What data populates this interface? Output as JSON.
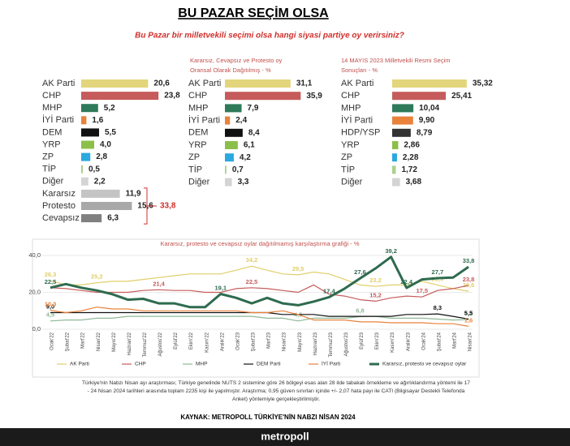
{
  "header": {
    "title": "BU PAZAR SEÇİM OLSA",
    "subtitle": "Bu Pazar bir milletvekili seçimi olsa hangi siyasi partiye oy verirsiniz?"
  },
  "chart_data": [
    {
      "type": "hbar",
      "categories": [
        "AK Parti",
        "CHP",
        "MHP",
        "İYİ Parti",
        "DEM",
        "YRP",
        "ZP",
        "TİP",
        "Diğer",
        "Kararsız",
        "Protesto",
        "Cevapsız"
      ],
      "values": [
        20.6,
        23.8,
        5.2,
        1.6,
        5.5,
        4.0,
        2.8,
        0.5,
        2.2,
        11.9,
        15.6,
        6.3
      ],
      "value_labels": [
        "20,6",
        "23,8",
        "5,2",
        "1,6",
        "5,5",
        "4,0",
        "2,8",
        "0,5",
        "2,2",
        "11,9",
        "15,6",
        "6,3"
      ],
      "colors": [
        "#e3d57c",
        "#c65b5b",
        "#2f7a5a",
        "#e9823a",
        "#111111",
        "#8cbf4a",
        "#2aa8e0",
        "#a9d18e",
        "#d4d4d4",
        "#c4c4c4",
        "#a9a9a9",
        "#808080"
      ],
      "bracket": {
        "value": 33.8,
        "label": "33,8"
      }
    },
    {
      "type": "hbar",
      "title": [
        "Kararsız, Cevapsız ve Protesto oy",
        "Oransal Olarak Dağıtılmış - %"
      ],
      "categories": [
        "AK Parti",
        "CHP",
        "MHP",
        "İYİ Parti",
        "DEM",
        "YRP",
        "ZP",
        "TİP",
        "Diğer"
      ],
      "values": [
        31.1,
        35.9,
        7.9,
        2.4,
        8.4,
        6.1,
        4.2,
        0.7,
        3.3
      ],
      "value_labels": [
        "31,1",
        "35,9",
        "7,9",
        "2,4",
        "8,4",
        "6,1",
        "4,2",
        "0,7",
        "3,3"
      ],
      "colors": [
        "#e3d57c",
        "#c65b5b",
        "#2f7a5a",
        "#e9823a",
        "#111111",
        "#8cbf4a",
        "#2aa8e0",
        "#a9d18e",
        "#d4d4d4"
      ]
    },
    {
      "type": "hbar",
      "title": [
        "14 MAYIS 2023 Milletvekili Resmi Seçim",
        "Sonuçları - %"
      ],
      "categories": [
        "AK Parti",
        "CHP",
        "MHP",
        "İYİ Parti",
        "HDP/YSP",
        "YRP",
        "ZP",
        "TİP",
        "Diğer"
      ],
      "values": [
        35.32,
        25.41,
        10.04,
        9.9,
        8.79,
        2.86,
        2.28,
        1.72,
        3.68
      ],
      "value_labels": [
        "35,32",
        "25,41",
        "10,04",
        "9,90",
        "8,79",
        "2,86",
        "2,28",
        "1,72",
        "3,68"
      ],
      "colors": [
        "#e3d57c",
        "#c65b5b",
        "#2f7a5a",
        "#e9823a",
        "#333333",
        "#8cbf4a",
        "#2aa8e0",
        "#a9d18e",
        "#d4d4d4"
      ]
    },
    {
      "type": "line",
      "title": "Kararsız, protesto ve cevapsız oylar dağıtılmamış karşılaştırma grafiği - %",
      "categories": [
        "Ocak'22",
        "Şubat'22",
        "Mart'22",
        "Nisan'22",
        "Mayıs'22",
        "Haziran'22",
        "Temmuz'22",
        "Ağustos'22",
        "Eylül'22",
        "Ekim'22",
        "Kasım'22",
        "Aralık'22",
        "Ocak'23",
        "Şubat'23",
        "Mart'23",
        "Nisan'23",
        "Mayıs'23",
        "Haziran'23",
        "Temmuz'23",
        "Ağustos'23",
        "Eylül'23",
        "Ekim'23",
        "Kasım'23",
        "Aralık'23",
        "Ocak'24",
        "Şubat'24",
        "Mart'24",
        "Nisan'24"
      ],
      "ylim": [
        0,
        40
      ],
      "yticks": [
        {
          "value": 0,
          "label": "0,0"
        },
        {
          "value": 20,
          "label": "20,0"
        },
        {
          "value": 40,
          "label": "40,0"
        }
      ],
      "grid": true,
      "series": [
        {
          "name": "AK Parti",
          "color": "#e0cf6a",
          "width": 1.2,
          "values": [
            26.3,
            24,
            24,
            25.2,
            26,
            26,
            27,
            28,
            29,
            30,
            30,
            30,
            32,
            34.2,
            32,
            30,
            29.5,
            31,
            30,
            27,
            24,
            23.2,
            24,
            24,
            26,
            23.9,
            22,
            20.6
          ],
          "value_labels": [
            "26,3",
            null,
            null,
            "25,2",
            null,
            null,
            null,
            null,
            null,
            null,
            null,
            null,
            null,
            "34,2",
            null,
            null,
            "29,5",
            null,
            null,
            null,
            null,
            "23,2",
            null,
            null,
            null,
            "23,9",
            null,
            "20,6"
          ]
        },
        {
          "name": "CHP",
          "color": "#c65b5b",
          "width": 1.2,
          "values": [
            22.5,
            22,
            21,
            20,
            20,
            20,
            21,
            21.4,
            21,
            21,
            20,
            20,
            22,
            22.5,
            22,
            21,
            20,
            24,
            19,
            18,
            16,
            15.2,
            17,
            18,
            17.5,
            21,
            22,
            23.8
          ],
          "value_labels": [
            null,
            null,
            null,
            null,
            null,
            null,
            null,
            "21,4",
            null,
            null,
            null,
            null,
            null,
            "22,5",
            null,
            null,
            null,
            null,
            null,
            null,
            null,
            "15,2",
            null,
            null,
            "17,5",
            null,
            null,
            "23,8"
          ]
        },
        {
          "name": "MHP",
          "color": "#8fb996",
          "width": 1.2,
          "values": [
            4.5,
            5,
            5,
            6,
            6,
            7,
            7,
            7,
            7,
            7,
            7,
            7,
            7,
            7,
            6,
            6,
            4.5,
            6,
            6,
            6,
            6.8,
            7,
            6,
            6,
            6,
            5.5,
            5,
            5.2
          ],
          "value_labels": [
            "4,5",
            null,
            null,
            null,
            null,
            null,
            null,
            null,
            null,
            null,
            null,
            null,
            null,
            null,
            null,
            null,
            "4,5",
            null,
            null,
            null,
            "6,8",
            null,
            null,
            null,
            null,
            null,
            null,
            "5,2"
          ]
        },
        {
          "name": "DEM Parti",
          "color": "#111111",
          "width": 1.2,
          "values": [
            9,
            9,
            9,
            9,
            9,
            9,
            9,
            9,
            9,
            9,
            9,
            9,
            9,
            9,
            9,
            8,
            8,
            8,
            7,
            7,
            7,
            7,
            7,
            8,
            8,
            8.3,
            7,
            5.5
          ],
          "value_labels": [
            "9,0",
            null,
            null,
            null,
            null,
            null,
            null,
            null,
            null,
            null,
            null,
            null,
            null,
            null,
            null,
            null,
            null,
            null,
            null,
            null,
            null,
            null,
            null,
            null,
            null,
            "8,3",
            null,
            "5,5"
          ]
        },
        {
          "name": "İYİ Parti",
          "color": "#e9823a",
          "width": 1.2,
          "values": [
            10.3,
            9,
            10,
            12,
            11,
            11,
            10,
            10,
            10,
            10,
            10,
            10,
            10,
            9,
            9,
            10,
            8,
            5,
            5,
            5,
            4,
            4,
            3.5,
            3.5,
            3.5,
            3,
            3,
            1.6
          ],
          "value_labels": [
            "10,3",
            null,
            null,
            null,
            null,
            null,
            null,
            null,
            null,
            null,
            null,
            null,
            null,
            null,
            null,
            null,
            null,
            null,
            null,
            null,
            null,
            null,
            null,
            null,
            null,
            null,
            null,
            "1,6"
          ]
        },
        {
          "name": "Kararsız, protesto ve cevapsız oylar",
          "color": "#2e6b4f",
          "width": 3,
          "values": [
            22.5,
            24.5,
            22.5,
            21,
            19,
            16,
            16.5,
            14,
            14,
            12,
            12,
            19.1,
            17,
            14,
            17,
            14,
            13,
            15,
            17.4,
            22,
            27.6,
            33,
            39.2,
            22.4,
            27,
            27.7,
            28,
            33.8
          ],
          "value_labels": [
            "22,5",
            null,
            null,
            null,
            null,
            null,
            null,
            null,
            null,
            null,
            null,
            "19,1",
            null,
            null,
            null,
            null,
            null,
            null,
            "17,4",
            null,
            "27,6",
            null,
            "39,2",
            "22,4",
            null,
            "27,7",
            null,
            "33,8"
          ]
        }
      ]
    }
  ],
  "note": [
    "Türkiye'nin Nabzı Nisan ayı araştırması; Türkiye genelinde NUTS 2 sistemine göre 26 bölgeyi esas alan 28 ilde tabakalı örnekleme ve ağırlıklandırma yöntemi ile 17",
    "- 24 Nisan 2024 tarihleri arasında toplam 2235 kişi ile yapılmıştır. Araştırma; 0,95 güven sınırları içinde +/- 2,07 hata payı ile CATI (Bilgisayar Destekli Telefonda",
    "Anket) yöntemiyle gerçekleştirilmiştir."
  ],
  "source": "KAYNAK: METROPOLL TÜRKİYE'NİN NABZI NİSAN 2024",
  "logo": "metropoll"
}
